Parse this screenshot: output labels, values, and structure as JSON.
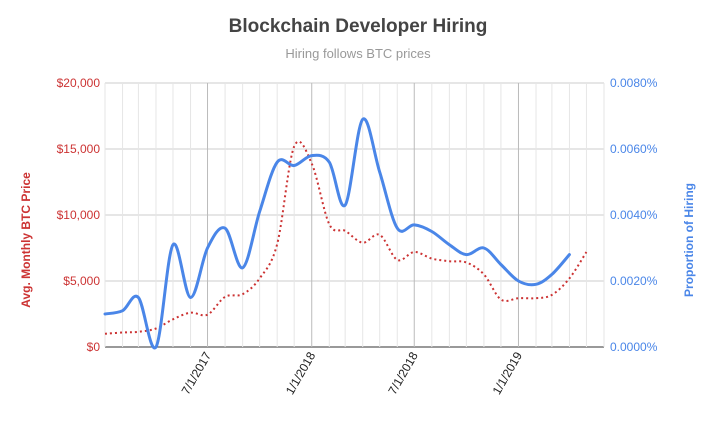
{
  "chart_data": {
    "type": "line",
    "title": "Blockchain Developer Hiring",
    "subtitle": "Hiring follows BTC prices",
    "y_left": {
      "label": "Avg. Monthly BTC Price",
      "ticks": [
        "$0",
        "$5,000",
        "$10,000",
        "$15,000",
        "$20,000"
      ],
      "range": [
        0,
        20000
      ],
      "color": "#cc3333"
    },
    "y_right": {
      "label": "Proportion of Hiring",
      "ticks": [
        "0.0000%",
        "0.0020%",
        "0.0040%",
        "0.0060%",
        "0.0080%"
      ],
      "range": [
        0,
        0.008
      ],
      "color": "#4a86e8"
    },
    "x_axis": {
      "range": [
        "2017-01-01",
        "2019-06-01"
      ],
      "tick_labels": [
        {
          "date": "2017-07-01",
          "label": "7/1/2017"
        },
        {
          "date": "2018-01-01",
          "label": "1/1/2018"
        },
        {
          "date": "2018-07-01",
          "label": "7/1/2018"
        },
        {
          "date": "2019-01-01",
          "label": "1/1/2019"
        }
      ]
    },
    "grid": true,
    "series": [
      {
        "color": "#cc3333",
        "style": "dotted",
        "axis": "left",
        "points": [
          [
            "2017-01-01",
            1000
          ],
          [
            "2017-02-01",
            1100
          ],
          [
            "2017-03-01",
            1150
          ],
          [
            "2017-04-01",
            1400
          ],
          [
            "2017-05-01",
            2100
          ],
          [
            "2017-06-01",
            2600
          ],
          [
            "2017-07-01",
            2450
          ],
          [
            "2017-08-01",
            3800
          ],
          [
            "2017-09-01",
            4000
          ],
          [
            "2017-10-01",
            5200
          ],
          [
            "2017-11-01",
            7800
          ],
          [
            "2017-12-01",
            15200
          ],
          [
            "2018-01-01",
            13900
          ],
          [
            "2018-02-01",
            9300
          ],
          [
            "2018-03-01",
            8800
          ],
          [
            "2018-04-01",
            7900
          ],
          [
            "2018-05-01",
            8500
          ],
          [
            "2018-06-01",
            6600
          ],
          [
            "2018-07-01",
            7200
          ],
          [
            "2018-08-01",
            6700
          ],
          [
            "2018-09-01",
            6500
          ],
          [
            "2018-10-01",
            6400
          ],
          [
            "2018-11-01",
            5500
          ],
          [
            "2018-12-01",
            3600
          ],
          [
            "2019-01-01",
            3700
          ],
          [
            "2019-02-01",
            3700
          ],
          [
            "2019-03-01",
            3950
          ],
          [
            "2019-04-01",
            5200
          ],
          [
            "2019-05-01",
            7200
          ]
        ]
      },
      {
        "color": "#4a86e8",
        "style": "solid",
        "axis": "right",
        "points": [
          [
            "2017-01-01",
            0.001
          ],
          [
            "2017-02-01",
            0.0011
          ],
          [
            "2017-03-01",
            0.0015
          ],
          [
            "2017-04-01",
            0.0
          ],
          [
            "2017-05-01",
            0.0031
          ],
          [
            "2017-06-01",
            0.0015
          ],
          [
            "2017-07-01",
            0.003
          ],
          [
            "2017-08-01",
            0.0036
          ],
          [
            "2017-09-01",
            0.0024
          ],
          [
            "2017-10-01",
            0.0041
          ],
          [
            "2017-11-01",
            0.0056
          ],
          [
            "2017-12-01",
            0.0055
          ],
          [
            "2018-01-01",
            0.0058
          ],
          [
            "2018-02-01",
            0.0056
          ],
          [
            "2018-03-01",
            0.0043
          ],
          [
            "2018-04-01",
            0.0069
          ],
          [
            "2018-05-01",
            0.0053
          ],
          [
            "2018-06-01",
            0.0036
          ],
          [
            "2018-07-01",
            0.0037
          ],
          [
            "2018-08-01",
            0.0035
          ],
          [
            "2018-09-01",
            0.0031
          ],
          [
            "2018-10-01",
            0.0028
          ],
          [
            "2018-11-01",
            0.003
          ],
          [
            "2018-12-01",
            0.0025
          ],
          [
            "2019-01-01",
            0.002
          ],
          [
            "2019-02-01",
            0.0019
          ],
          [
            "2019-03-01",
            0.0022
          ],
          [
            "2019-04-01",
            0.0028
          ]
        ]
      }
    ]
  }
}
